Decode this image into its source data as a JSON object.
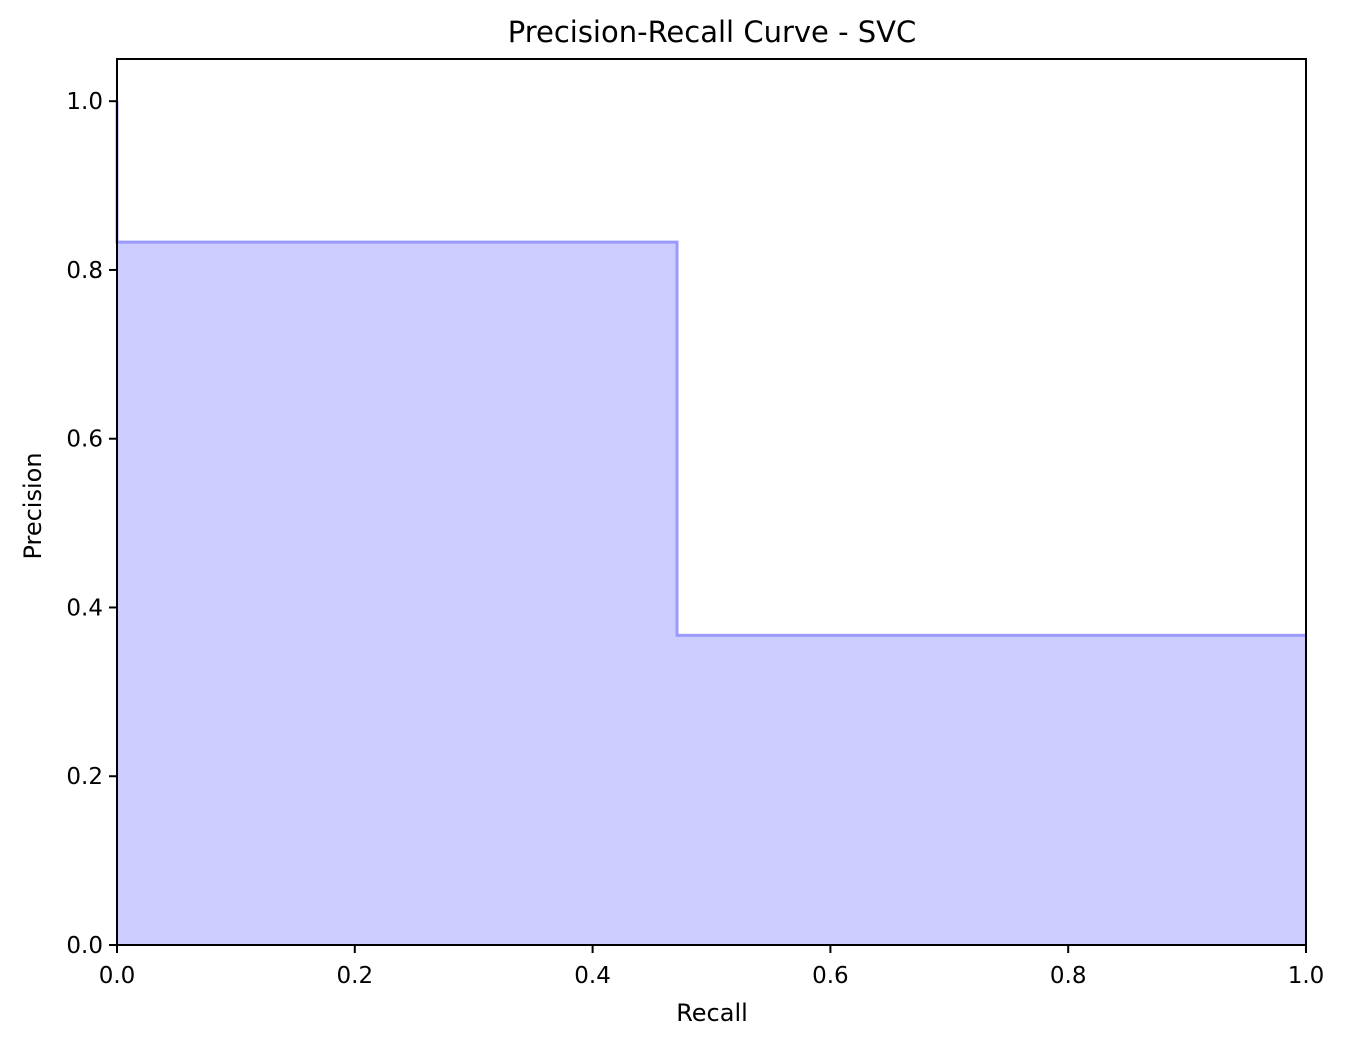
{
  "chart_data": {
    "type": "area",
    "title": "Precision-Recall Curve - SVC",
    "xlabel": "Recall",
    "ylabel": "Precision",
    "xlim": [
      0.0,
      1.0
    ],
    "ylim": [
      0.0,
      1.05
    ],
    "xticks": [
      "0.0",
      "0.2",
      "0.4",
      "0.6",
      "0.8",
      "1.0"
    ],
    "yticks": [
      "0.0",
      "0.2",
      "0.4",
      "0.6",
      "0.8",
      "1.0"
    ],
    "grid": false,
    "step": "post",
    "series": [
      {
        "recall": [
          0.0,
          0.0,
          0.471,
          1.0
        ],
        "precision": [
          1.0,
          0.833,
          0.367,
          0.367
        ]
      }
    ],
    "colors": {
      "fill": "#ccccff",
      "line": "#9999ff",
      "axes": "#000000"
    }
  }
}
